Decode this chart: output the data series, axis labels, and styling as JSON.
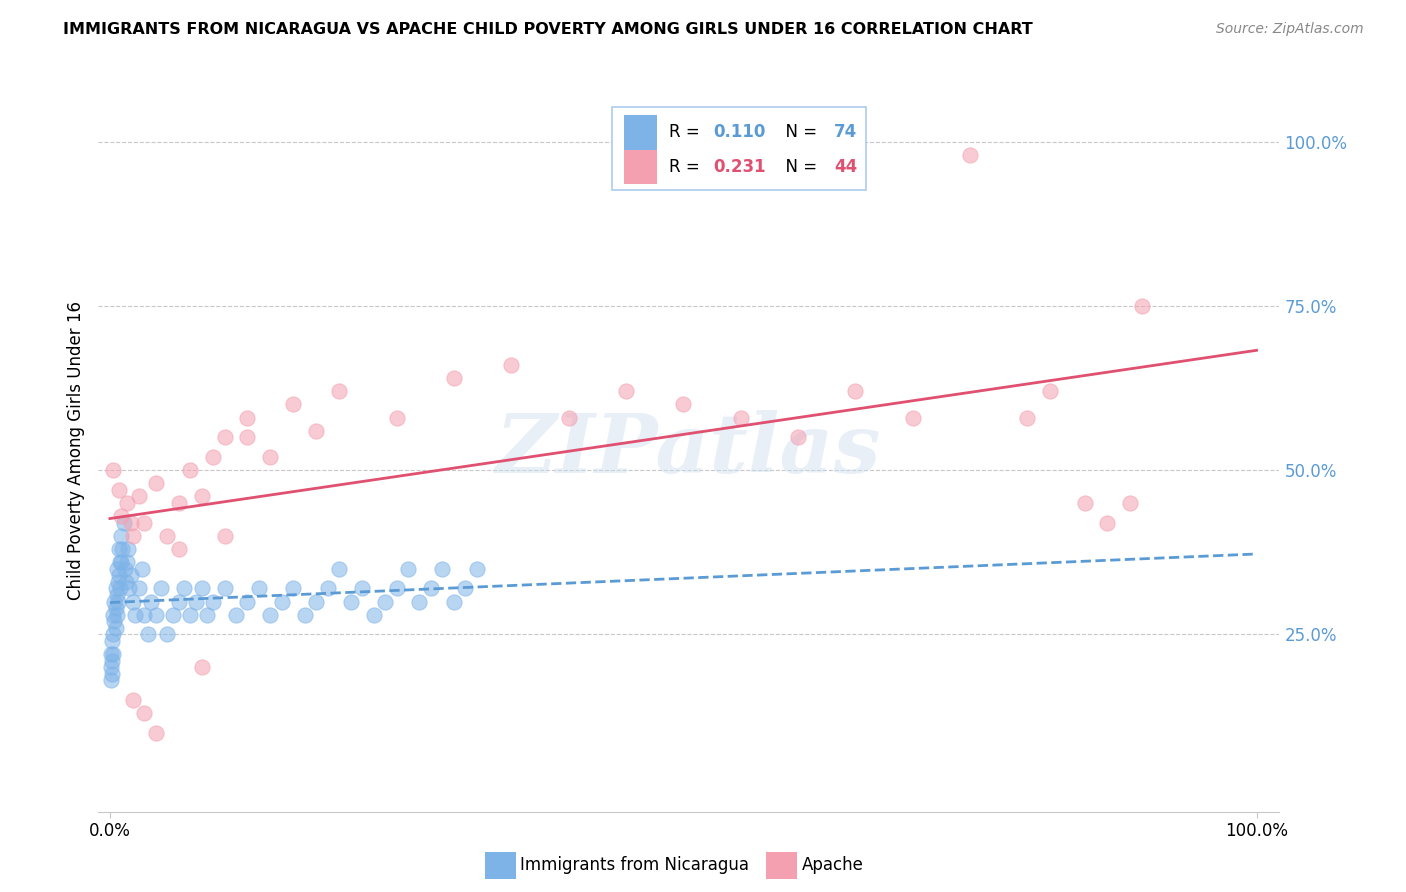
{
  "title": "IMMIGRANTS FROM NICARAGUA VS APACHE CHILD POVERTY AMONG GIRLS UNDER 16 CORRELATION CHART",
  "source": "Source: ZipAtlas.com",
  "ylabel": "Child Poverty Among Girls Under 16",
  "color_blue": "#7EB3E8",
  "color_pink": "#F4A0B0",
  "color_line_blue": "#5B9BD5",
  "color_line_pink": "#E05070",
  "color_ytick": "#5B9BD5",
  "watermark": "ZIPatlas",
  "label1": "Immigrants from Nicaragua",
  "label2": "Apache",
  "r1": "0.110",
  "n1": "74",
  "r2": "0.231",
  "n2": "44",
  "blue_x": [
    0.001,
    0.001,
    0.001,
    0.002,
    0.002,
    0.002,
    0.003,
    0.003,
    0.003,
    0.004,
    0.004,
    0.005,
    0.005,
    0.005,
    0.006,
    0.006,
    0.006,
    0.007,
    0.007,
    0.008,
    0.008,
    0.009,
    0.009,
    0.01,
    0.01,
    0.011,
    0.012,
    0.013,
    0.014,
    0.015,
    0.016,
    0.017,
    0.018,
    0.02,
    0.022,
    0.025,
    0.028,
    0.03,
    0.033,
    0.036,
    0.04,
    0.045,
    0.05,
    0.055,
    0.06,
    0.065,
    0.07,
    0.075,
    0.08,
    0.085,
    0.09,
    0.1,
    0.11,
    0.12,
    0.13,
    0.14,
    0.15,
    0.16,
    0.17,
    0.18,
    0.19,
    0.2,
    0.21,
    0.22,
    0.23,
    0.24,
    0.25,
    0.26,
    0.27,
    0.28,
    0.29,
    0.3,
    0.31,
    0.32
  ],
  "blue_y": [
    0.22,
    0.2,
    0.18,
    0.24,
    0.21,
    0.19,
    0.28,
    0.25,
    0.22,
    0.3,
    0.27,
    0.32,
    0.29,
    0.26,
    0.35,
    0.31,
    0.28,
    0.33,
    0.3,
    0.38,
    0.34,
    0.36,
    0.32,
    0.4,
    0.36,
    0.38,
    0.42,
    0.35,
    0.33,
    0.36,
    0.38,
    0.32,
    0.34,
    0.3,
    0.28,
    0.32,
    0.35,
    0.28,
    0.25,
    0.3,
    0.28,
    0.32,
    0.25,
    0.28,
    0.3,
    0.32,
    0.28,
    0.3,
    0.32,
    0.28,
    0.3,
    0.32,
    0.28,
    0.3,
    0.32,
    0.28,
    0.3,
    0.32,
    0.28,
    0.3,
    0.32,
    0.35,
    0.3,
    0.32,
    0.28,
    0.3,
    0.32,
    0.35,
    0.3,
    0.32,
    0.35,
    0.3,
    0.32,
    0.35
  ],
  "pink_x": [
    0.003,
    0.008,
    0.01,
    0.015,
    0.018,
    0.02,
    0.025,
    0.03,
    0.04,
    0.05,
    0.06,
    0.07,
    0.08,
    0.09,
    0.1,
    0.12,
    0.14,
    0.16,
    0.18,
    0.2,
    0.25,
    0.3,
    0.35,
    0.4,
    0.45,
    0.5,
    0.55,
    0.6,
    0.65,
    0.7,
    0.75,
    0.8,
    0.82,
    0.85,
    0.87,
    0.89,
    0.9,
    0.02,
    0.03,
    0.04,
    0.06,
    0.08,
    0.1,
    0.12
  ],
  "pink_y": [
    0.5,
    0.47,
    0.43,
    0.45,
    0.42,
    0.4,
    0.46,
    0.42,
    0.48,
    0.4,
    0.45,
    0.5,
    0.46,
    0.52,
    0.55,
    0.58,
    0.52,
    0.6,
    0.56,
    0.62,
    0.58,
    0.64,
    0.66,
    0.58,
    0.62,
    0.6,
    0.58,
    0.55,
    0.62,
    0.58,
    0.98,
    0.58,
    0.62,
    0.45,
    0.42,
    0.45,
    0.75,
    0.15,
    0.13,
    0.1,
    0.38,
    0.2,
    0.4,
    0.55
  ]
}
